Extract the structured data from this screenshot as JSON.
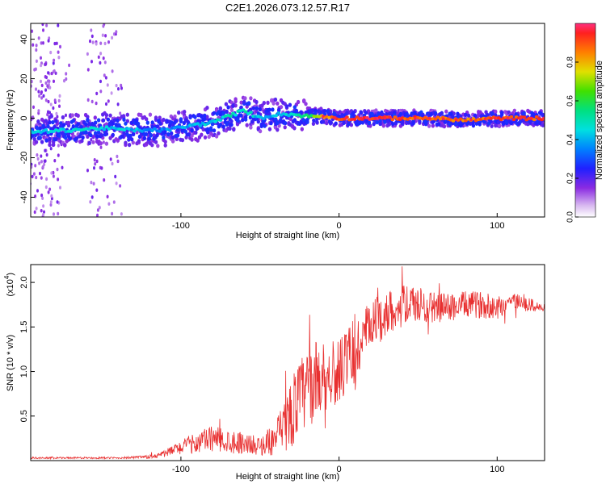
{
  "title": "C2E1.2026.073.12.57.R17",
  "chart_data": [
    {
      "type": "heatmap",
      "title": "C2E1.2026.073.12.57.R17",
      "xlabel": "Height of straight line (km)",
      "ylabel": "Frequency (Hz)",
      "xlim": [
        -195,
        130
      ],
      "ylim": [
        -50,
        48
      ],
      "x_ticks": [
        -100,
        0,
        100
      ],
      "y_ticks": [
        -40,
        -20,
        0,
        20,
        40
      ],
      "colorbar": {
        "label": "Normalized spectral amplitude",
        "range": [
          0,
          1
        ],
        "ticks": [
          "0.0",
          "0.2",
          "0.4",
          "0.6",
          "0.8"
        ],
        "tick_values": [
          0,
          0.2,
          0.4,
          0.6,
          0.8
        ]
      },
      "ridge": {
        "description_points_x": [
          -195,
          -170,
          -150,
          -130,
          -110,
          -95,
          -80,
          -70,
          -60,
          -50,
          -40,
          -30,
          -20,
          -10,
          0,
          20,
          40,
          60,
          80,
          100,
          130
        ],
        "frequency_y": [
          -7,
          -6,
          -5,
          -6,
          -6,
          -4,
          -2,
          1,
          4,
          0,
          2,
          2,
          1,
          1,
          0,
          0,
          0,
          0,
          -1,
          0,
          0
        ],
        "amplitude": [
          0.4,
          0.45,
          0.45,
          0.4,
          0.35,
          0.4,
          0.45,
          0.5,
          0.5,
          0.4,
          0.4,
          0.45,
          0.55,
          0.8,
          0.9,
          0.95,
          0.9,
          0.9,
          0.85,
          0.9,
          0.9
        ]
      }
    },
    {
      "type": "line",
      "xlabel": "Height of straight line (km)",
      "ylabel": "SNR (10 * v/v)",
      "y_multiplier": "(x10",
      "y_multiplier_exp": "4",
      "y_multiplier_close": ")",
      "xlim": [
        -195,
        130
      ],
      "ylim": [
        0,
        2.2
      ],
      "x_ticks": [
        -100,
        0,
        100
      ],
      "y_ticks": [
        0.5,
        1.0,
        1.5,
        2.0
      ],
      "y_tick_labels": [
        "0.5",
        "1.0",
        "1.5",
        "2.0"
      ],
      "series": [
        {
          "name": "SNR",
          "color": "#e83030",
          "x": [
            -195,
            -180,
            -160,
            -140,
            -120,
            -110,
            -100,
            -90,
            -80,
            -70,
            -60,
            -50,
            -40,
            -35,
            -30,
            -25,
            -20,
            -15,
            -10,
            -5,
            0,
            5,
            10,
            15,
            20,
            30,
            40,
            50,
            60,
            70,
            80,
            90,
            100,
            110,
            120,
            130
          ],
          "y": [
            0.03,
            0.03,
            0.03,
            0.03,
            0.04,
            0.08,
            0.15,
            0.2,
            0.25,
            0.22,
            0.2,
            0.16,
            0.25,
            0.35,
            0.55,
            0.7,
            0.8,
            0.9,
            0.95,
            0.95,
            1.0,
            1.1,
            1.2,
            1.35,
            1.5,
            1.65,
            1.75,
            1.75,
            1.72,
            1.72,
            1.75,
            1.75,
            1.72,
            1.8,
            1.75,
            1.7
          ],
          "noise": [
            0.01,
            0.01,
            0.01,
            0.01,
            0.02,
            0.04,
            0.08,
            0.12,
            0.15,
            0.14,
            0.12,
            0.1,
            0.2,
            0.3,
            0.4,
            0.45,
            0.45,
            0.45,
            0.4,
            0.35,
            0.35,
            0.4,
            0.45,
            0.35,
            0.3,
            0.25,
            0.22,
            0.2,
            0.18,
            0.16,
            0.15,
            0.15,
            0.14,
            0.1,
            0.08,
            0.06
          ]
        }
      ]
    }
  ]
}
